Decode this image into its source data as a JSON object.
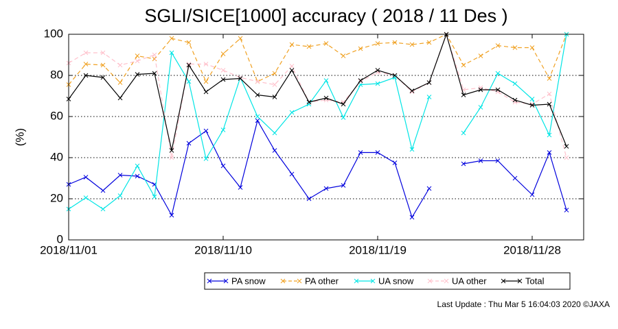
{
  "chart_data": {
    "type": "line",
    "title": "SGLI/SICE[1000] accuracy ( 2018 / 11 Des )",
    "y_label": "(%)",
    "footer": "Last Update : Thu Mar  5 16:04:03 2020 ©JAXA",
    "x": [
      "2018-11-01",
      "2018-11-02",
      "2018-11-03",
      "2018-11-04",
      "2018-11-05",
      "2018-11-06",
      "2018-11-07",
      "2018-11-08",
      "2018-11-09",
      "2018-11-10",
      "2018-11-11",
      "2018-11-12",
      "2018-11-13",
      "2018-11-14",
      "2018-11-15",
      "2018-11-16",
      "2018-11-17",
      "2018-11-18",
      "2018-11-19",
      "2018-11-20",
      "2018-11-21",
      "2018-11-22",
      "2018-11-23",
      "2018-11-24",
      "2018-11-25",
      "2018-11-26",
      "2018-11-27",
      "2018-11-28",
      "2018-11-29",
      "2018-11-30"
    ],
    "xlim": [
      "2018-11-01",
      "2018-12-01"
    ],
    "xticks": [
      {
        "value": "2018-11-01",
        "label": "2018/11/01"
      },
      {
        "value": "2018-11-10",
        "label": "2018/11/10"
      },
      {
        "value": "2018-11-19",
        "label": "2018/11/19"
      },
      {
        "value": "2018-11-28",
        "label": "2018/11/28"
      }
    ],
    "ylim": [
      0,
      100
    ],
    "yticks": [
      0,
      20,
      40,
      60,
      80,
      100
    ],
    "grid": true,
    "series": [
      {
        "name": "PA snow",
        "color": "#0000dd",
        "values": [
          27,
          30.5,
          24,
          31.5,
          31,
          27,
          12,
          47,
          53,
          36,
          25.5,
          58,
          43.5,
          32,
          20,
          25,
          26.5,
          42.5,
          42.5,
          37.5,
          11,
          25,
          null,
          37,
          38.5,
          38.5,
          30,
          22,
          42.5,
          14.5
        ]
      },
      {
        "name": "PA other",
        "color": "#f0a020",
        "dashed": true,
        "values": [
          75.5,
          85.5,
          85,
          76.5,
          89.5,
          88,
          98,
          96,
          77,
          90.5,
          98,
          77,
          81,
          95,
          94,
          95.5,
          89.5,
          93,
          95.5,
          96,
          95,
          96,
          100,
          85,
          89.5,
          94.5,
          93.5,
          93.5,
          78.5,
          100
        ]
      },
      {
        "name": "UA snow",
        "color": "#00e5e5",
        "values": [
          15,
          20.5,
          15,
          21.5,
          36,
          21,
          91,
          77,
          39.5,
          53.5,
          79,
          60,
          52,
          62,
          66,
          77.5,
          59.5,
          75.5,
          76,
          79,
          44,
          69.5,
          null,
          52,
          64.5,
          81,
          76,
          68.5,
          51,
          100
        ]
      },
      {
        "name": "UA other",
        "color": "#ffc0cb",
        "dashed": true,
        "values": [
          86,
          91,
          91,
          85,
          87,
          90,
          40,
          85.5,
          85.5,
          82.5,
          79,
          77,
          75.5,
          84.5,
          67,
          68,
          67,
          77,
          81.5,
          80,
          72,
          76.5,
          100,
          73,
          74,
          72,
          67,
          66,
          71,
          40
        ]
      },
      {
        "name": "Total",
        "color": "#000000",
        "values": [
          68.5,
          80,
          79,
          69,
          80.5,
          81,
          43.5,
          85,
          72,
          78,
          78.5,
          70.5,
          69.5,
          82.5,
          67,
          69,
          66,
          77.5,
          82.5,
          80,
          72.5,
          76.5,
          100,
          70.5,
          73,
          73,
          68,
          65.5,
          66,
          45.5
        ]
      }
    ]
  }
}
